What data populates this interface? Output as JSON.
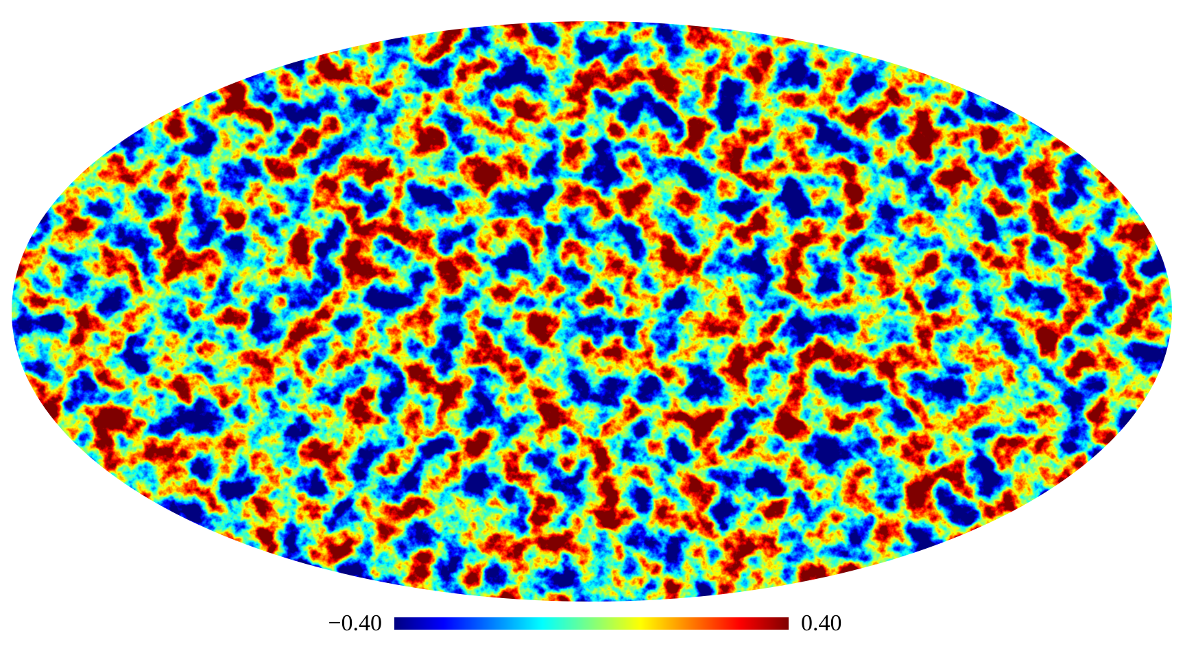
{
  "colorbar": {
    "ticks": [
      {
        "value": -0.4,
        "label": "−0.40"
      },
      {
        "value": 0.4,
        "label": "0.40"
      }
    ],
    "colors": [
      "#00007f",
      "#0000ff",
      "#007fff",
      "#00ffff",
      "#7fff7f",
      "#ffff00",
      "#ff7f00",
      "#ff0000",
      "#7f0000"
    ]
  }
}
